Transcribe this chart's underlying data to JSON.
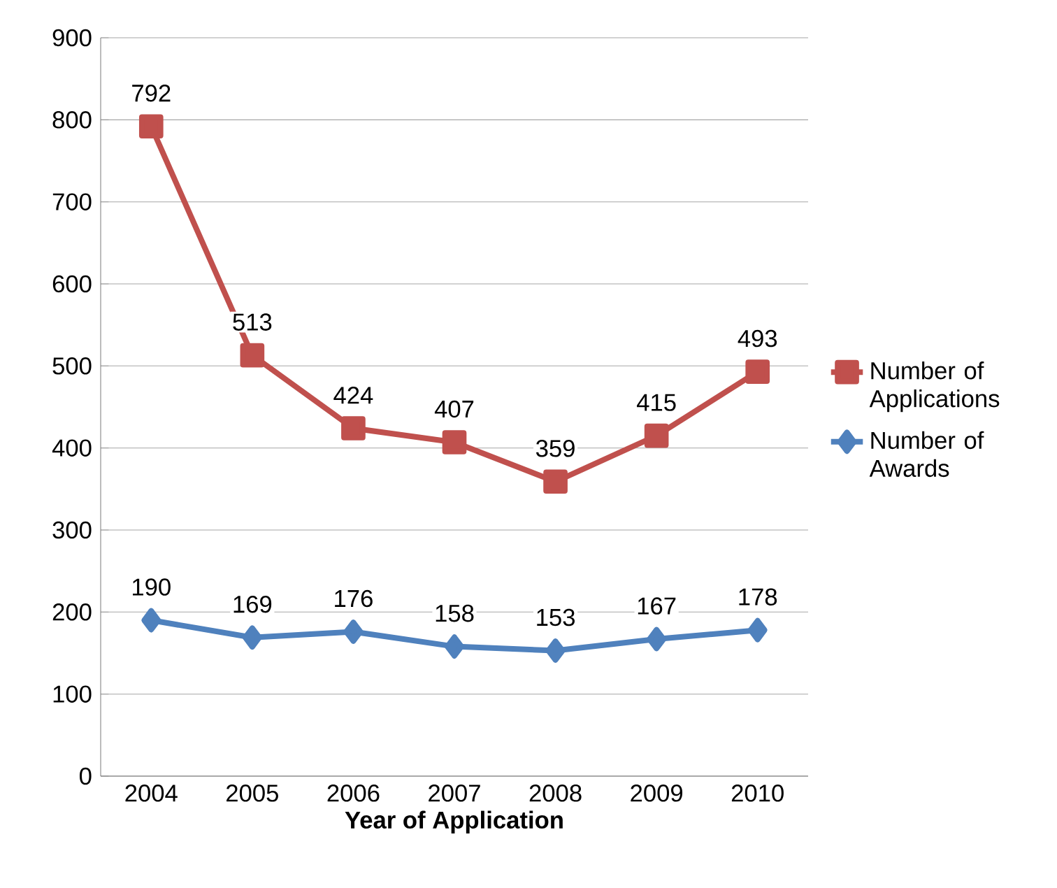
{
  "chart_data": {
    "type": "line",
    "xlabel": "Year of Application",
    "categories": [
      "2004",
      "2005",
      "2006",
      "2007",
      "2008",
      "2009",
      "2010"
    ],
    "series": [
      {
        "name": "Number of Applications",
        "color": "#c0504d",
        "marker": "square",
        "values": [
          792,
          513,
          424,
          407,
          359,
          415,
          493
        ]
      },
      {
        "name": "Number of Awards",
        "color": "#4f81bd",
        "marker": "diamond",
        "values": [
          190,
          169,
          176,
          158,
          153,
          167,
          178
        ]
      }
    ],
    "ylim": [
      0,
      900
    ],
    "yticks": [
      0,
      100,
      200,
      300,
      400,
      500,
      600,
      700,
      800,
      900
    ],
    "grid": "y",
    "legend": "right",
    "data_labels": true
  }
}
